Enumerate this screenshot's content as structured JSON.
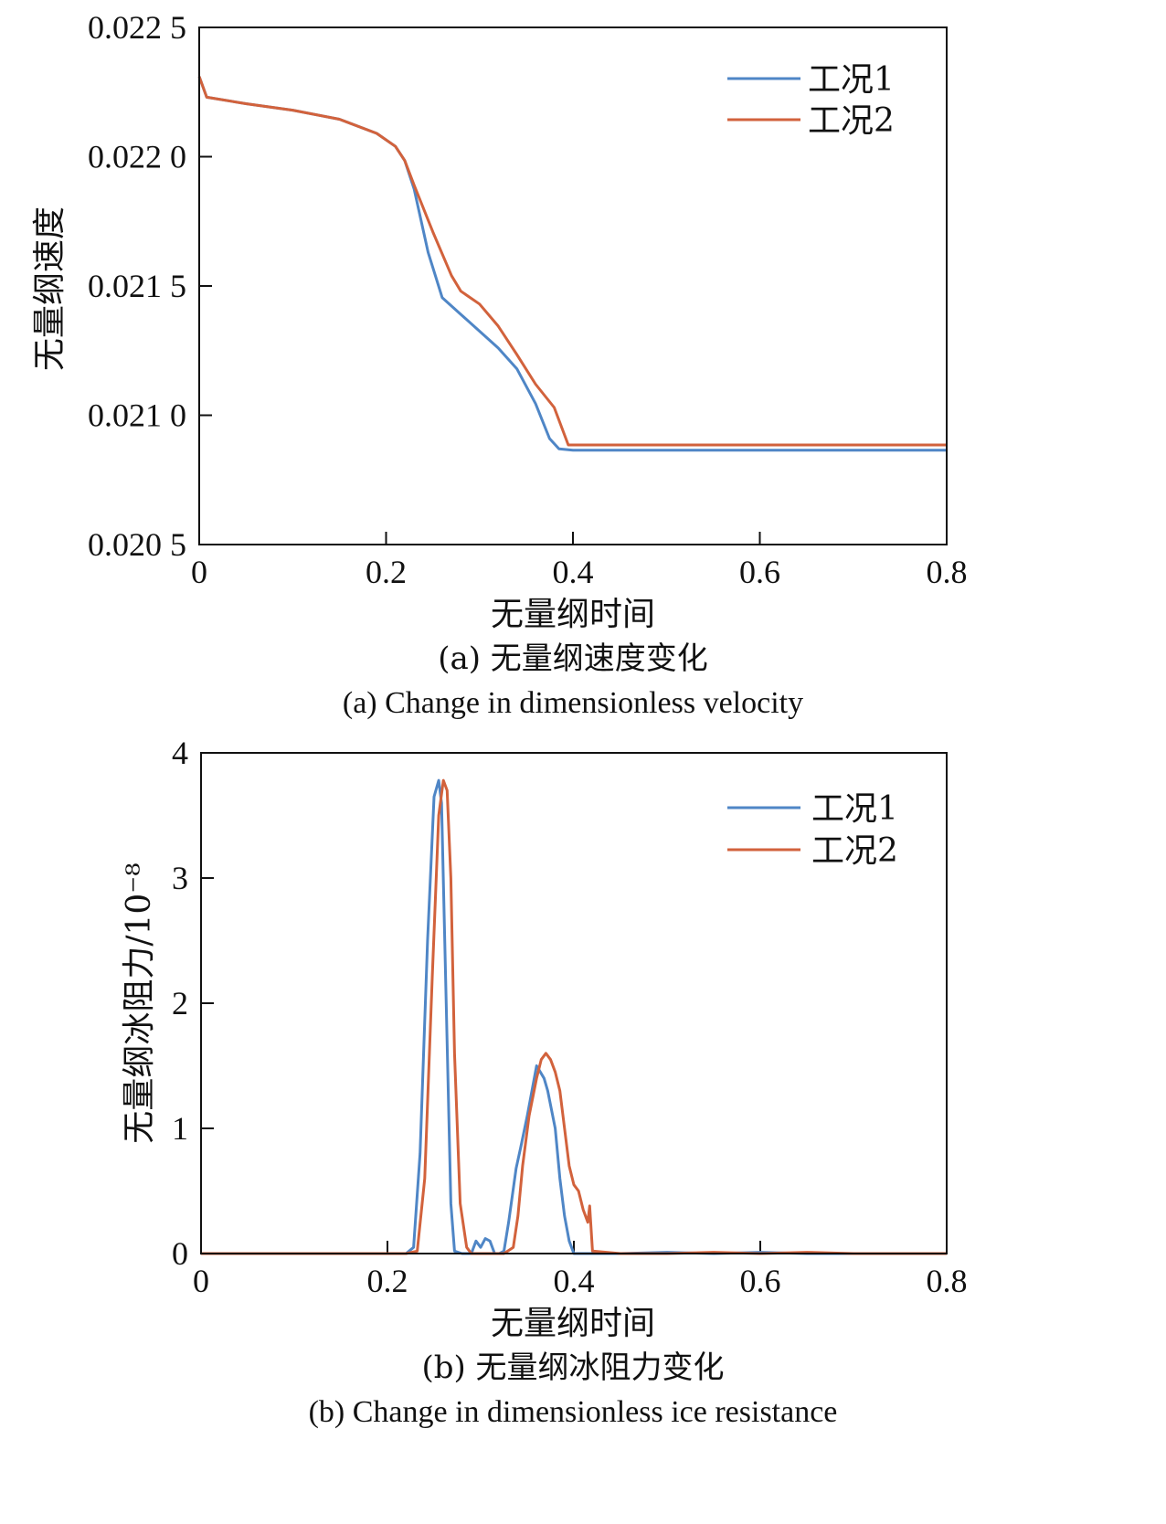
{
  "colors": {
    "series1": "#4f86c6",
    "series2": "#d2623c",
    "axis": "#111111"
  },
  "chart_data": [
    {
      "type": "line",
      "caption_cn": "(a) 无量纲速度变化",
      "caption_en": "(a) Change in dimensionless velocity",
      "xlabel": "无量纲时间",
      "ylabel": "无量纲速度",
      "xlim": [
        0,
        0.8
      ],
      "ylim": [
        0.0205,
        0.0225
      ],
      "x_ticks": [
        0,
        0.2,
        0.4,
        0.6,
        0.8
      ],
      "x_tick_labels": [
        "0",
        "0.2",
        "0.4",
        "0.6",
        "0.8"
      ],
      "y_ticks": [
        0.0205,
        0.021,
        0.0215,
        0.022,
        0.0225
      ],
      "y_tick_labels": [
        "0.020 5",
        "0.021 0",
        "0.021 5",
        "0.022 0",
        "0.022 5"
      ],
      "legend_position": "top-right",
      "series": [
        {
          "name": "工况1",
          "x": [
            0,
            0.008,
            0.05,
            0.1,
            0.15,
            0.19,
            0.21,
            0.22,
            0.23,
            0.245,
            0.26,
            0.28,
            0.3,
            0.32,
            0.34,
            0.36,
            0.375,
            0.385,
            0.4,
            0.5,
            0.6,
            0.7,
            0.8
          ],
          "y": [
            0.02231,
            0.02223,
            0.022205,
            0.02218,
            0.022145,
            0.02209,
            0.02204,
            0.021985,
            0.021875,
            0.02163,
            0.021455,
            0.02139,
            0.021325,
            0.02126,
            0.02118,
            0.021045,
            0.02091,
            0.02087,
            0.020865,
            0.020865,
            0.020865,
            0.020865,
            0.020865
          ]
        },
        {
          "name": "工况2",
          "x": [
            0,
            0.008,
            0.05,
            0.1,
            0.15,
            0.19,
            0.21,
            0.22,
            0.23,
            0.25,
            0.27,
            0.28,
            0.3,
            0.32,
            0.34,
            0.36,
            0.38,
            0.395,
            0.4,
            0.5,
            0.6,
            0.7,
            0.8
          ],
          "y": [
            0.02231,
            0.02223,
            0.022205,
            0.02218,
            0.022145,
            0.02209,
            0.02204,
            0.021985,
            0.02189,
            0.02171,
            0.02154,
            0.02148,
            0.02143,
            0.021345,
            0.021235,
            0.02112,
            0.02103,
            0.020885,
            0.020885,
            0.020885,
            0.020885,
            0.020885,
            0.020885
          ]
        }
      ]
    },
    {
      "type": "line",
      "caption_cn": "(b) 无量纲冰阻力变化",
      "caption_en": "(b) Change in dimensionless ice resistance",
      "xlabel": "无量纲时间",
      "ylabel": "无量纲冰阻力/10⁻⁸",
      "xlim": [
        0,
        0.8
      ],
      "ylim": [
        0,
        4
      ],
      "x_ticks": [
        0,
        0.2,
        0.4,
        0.6,
        0.8
      ],
      "x_tick_labels": [
        "0",
        "0.2",
        "0.4",
        "0.6",
        "0.8"
      ],
      "y_ticks": [
        0,
        1,
        2,
        3,
        4
      ],
      "y_tick_labels": [
        "0",
        "1",
        "2",
        "3",
        "4"
      ],
      "legend_position": "top-right",
      "series": [
        {
          "name": "工况1",
          "x": [
            0,
            0.22,
            0.228,
            0.235,
            0.243,
            0.25,
            0.255,
            0.258,
            0.263,
            0.268,
            0.272,
            0.28,
            0.29,
            0.295,
            0.3,
            0.305,
            0.31,
            0.315,
            0.32,
            0.325,
            0.33,
            0.338,
            0.343,
            0.35,
            0.355,
            0.36,
            0.364,
            0.368,
            0.372,
            0.38,
            0.385,
            0.39,
            0.395,
            0.4,
            0.45,
            0.5,
            0.55,
            0.6,
            0.65,
            0.7,
            0.8
          ],
          "y": [
            0,
            0,
            0.05,
            0.8,
            2.5,
            3.65,
            3.78,
            3.6,
            2.0,
            0.4,
            0.02,
            0,
            0,
            0.1,
            0.05,
            0.12,
            0.1,
            0,
            0,
            0.02,
            0.25,
            0.68,
            0.85,
            1.1,
            1.3,
            1.5,
            1.45,
            1.4,
            1.3,
            1.0,
            0.6,
            0.3,
            0.1,
            0,
            0,
            0.01,
            0,
            0.01,
            0,
            0,
            0
          ]
        },
        {
          "name": "工况2",
          "x": [
            0,
            0.22,
            0.232,
            0.24,
            0.248,
            0.255,
            0.26,
            0.264,
            0.268,
            0.272,
            0.278,
            0.285,
            0.29,
            0.3,
            0.325,
            0.335,
            0.34,
            0.345,
            0.352,
            0.36,
            0.365,
            0.37,
            0.375,
            0.38,
            0.385,
            0.39,
            0.395,
            0.4,
            0.405,
            0.41,
            0.415,
            0.417,
            0.42,
            0.45,
            0.5,
            0.55,
            0.6,
            0.65,
            0.7,
            0.8
          ],
          "y": [
            0,
            0,
            0.02,
            0.6,
            2.2,
            3.5,
            3.78,
            3.7,
            3.0,
            1.6,
            0.4,
            0.05,
            0,
            0,
            0,
            0.05,
            0.3,
            0.7,
            1.1,
            1.4,
            1.55,
            1.6,
            1.55,
            1.45,
            1.3,
            1.0,
            0.7,
            0.55,
            0.5,
            0.35,
            0.25,
            0.38,
            0.02,
            0,
            0,
            0.01,
            0,
            0.01,
            0,
            0
          ]
        }
      ]
    }
  ]
}
